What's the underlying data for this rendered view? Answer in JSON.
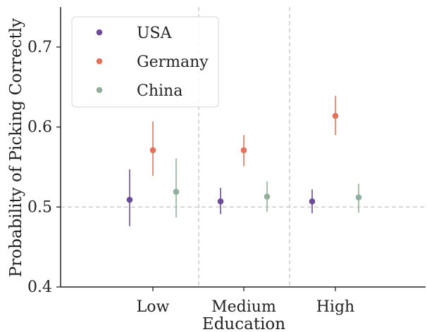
{
  "chart_data": {
    "type": "scatter",
    "xlabel": "Education",
    "ylabel": "Probability of Picking Correctly",
    "categories": [
      "Low",
      "Medium",
      "High"
    ],
    "ylim": [
      0.4,
      0.75
    ],
    "yticks": [
      "0.4",
      "0.5",
      "0.6",
      "0.7"
    ],
    "yticks_values": [
      0.4,
      0.5,
      0.6,
      0.7
    ],
    "reference_line": 0.5,
    "category_separators": true,
    "legend_position": "top-left",
    "grid": false,
    "series": [
      {
        "name": "USA",
        "color": "#6b4c9a",
        "values": [
          0.509,
          0.507,
          0.507
        ],
        "lower": [
          0.476,
          0.491,
          0.492
        ],
        "upper": [
          0.547,
          0.524,
          0.522
        ]
      },
      {
        "name": "Germany",
        "color": "#e0735a",
        "values": [
          0.571,
          0.571,
          0.614
        ],
        "lower": [
          0.539,
          0.551,
          0.59
        ],
        "upper": [
          0.607,
          0.59,
          0.639
        ]
      },
      {
        "name": "China",
        "color": "#8fb09a",
        "values": [
          0.519,
          0.513,
          0.512
        ],
        "lower": [
          0.487,
          0.494,
          0.493
        ],
        "upper": [
          0.561,
          0.532,
          0.529
        ]
      }
    ]
  }
}
